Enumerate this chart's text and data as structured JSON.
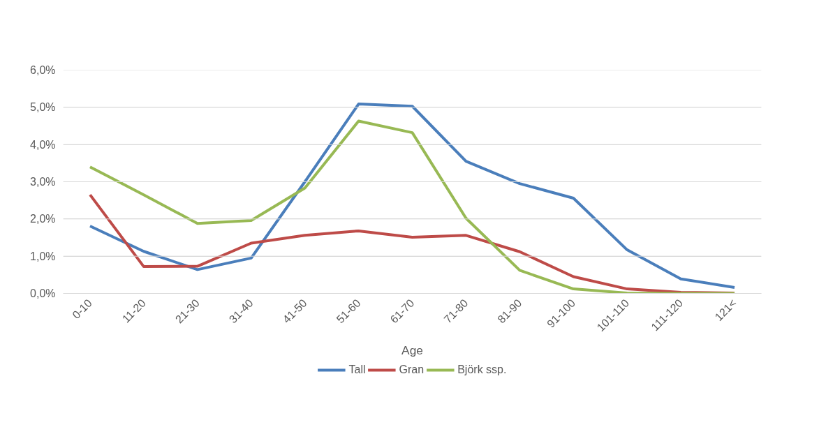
{
  "chart_data": {
    "type": "line",
    "xlabel": "Age",
    "categories": [
      "0-10",
      "11-20",
      "21-30",
      "31-40",
      "41-50",
      "51-60",
      "61-70",
      "71-80",
      "81-90",
      "91-100",
      "101-110",
      "111-120",
      "121<"
    ],
    "series": [
      {
        "name": "Tall",
        "color": "#4a7ebb",
        "values": [
          1.81,
          1.13,
          0.64,
          0.95,
          3.0,
          5.09,
          5.03,
          3.55,
          2.95,
          2.56,
          1.17,
          0.39,
          0.16
        ]
      },
      {
        "name": "Gran",
        "color": "#be4b48",
        "values": [
          2.65,
          0.72,
          0.73,
          1.35,
          1.56,
          1.68,
          1.51,
          1.56,
          1.12,
          0.45,
          0.12,
          0.03,
          0.01
        ]
      },
      {
        "name": "Björk ssp.",
        "color": "#98b954",
        "values": [
          3.4,
          2.65,
          1.88,
          1.96,
          2.83,
          4.63,
          4.32,
          2.02,
          0.62,
          0.12,
          0.01,
          0.0,
          0.0
        ]
      }
    ],
    "ylim": [
      0,
      6.0
    ],
    "yticks": [
      {
        "value": 0,
        "label": "0,0%"
      },
      {
        "value": 1,
        "label": "1,0%"
      },
      {
        "value": 2,
        "label": "2,0%"
      },
      {
        "value": 3,
        "label": "3,0%"
      },
      {
        "value": 4,
        "label": "4,0%"
      },
      {
        "value": 5,
        "label": "5,0%"
      },
      {
        "value": 6,
        "label": "6,0%"
      }
    ],
    "grid": "y",
    "legend": "bottom",
    "marker": "none",
    "line_style": "solid"
  }
}
